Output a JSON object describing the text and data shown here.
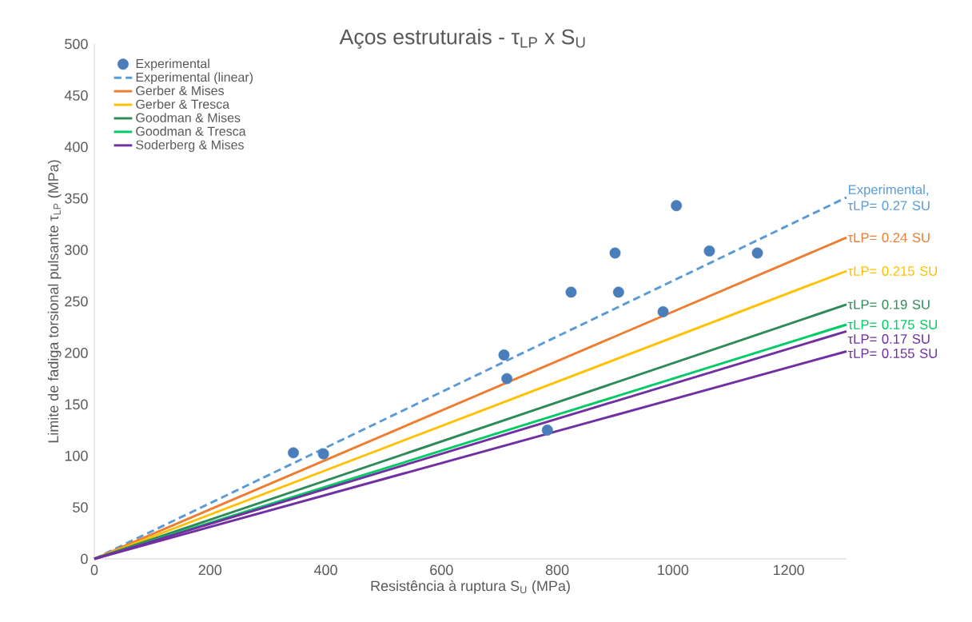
{
  "chart_data": {
    "type": "line",
    "title": "Aços estruturais - τ$_{LP}$ x S$_{U}$",
    "xlabel": "Resistência à ruptura S$_{U}$ (MPa)",
    "ylabel": "Limite de fadiga torsional pulsante τ$_{LP}$ (MPa)",
    "xlim": [
      0,
      1300
    ],
    "ylim": [
      0,
      500
    ],
    "xticks": [
      0,
      200,
      400,
      600,
      800,
      1000,
      1200
    ],
    "yticks": [
      0,
      50,
      100,
      150,
      200,
      250,
      300,
      350,
      400,
      450,
      500
    ],
    "legend": "top left",
    "series": [
      {
        "name": "Experimental",
        "type": "scatter",
        "marker": "circle",
        "color": "#4a7ebb",
        "x": [
          344,
          396,
          708,
          713,
          783,
          824,
          900,
          906,
          983,
          1006,
          1063,
          1146
        ],
        "values": [
          103,
          102,
          198,
          175,
          125,
          259,
          297,
          259,
          240,
          343,
          299,
          297
        ]
      },
      {
        "name": "Experimental (linear)",
        "line_style": "dashed",
        "color": "#5b9bd5",
        "x": [
          0,
          1300
        ],
        "values": [
          0,
          351
        ]
      },
      {
        "name": "Gerber & Mises",
        "color": "#ed7d31",
        "x": [
          0,
          1300
        ],
        "values": [
          0,
          312
        ]
      },
      {
        "name": "Gerber & Tresca",
        "color": "#ffc000",
        "x": [
          0,
          1300
        ],
        "values": [
          0,
          279.5
        ]
      },
      {
        "name": "Goodman & Mises",
        "color": "#2e8b57",
        "x": [
          0,
          1300
        ],
        "values": [
          0,
          247
        ]
      },
      {
        "name": "Goodman & Tresca",
        "color": "#00cc66",
        "x": [
          0,
          1300
        ],
        "values": [
          0,
          227.5
        ]
      },
      {
        "name": "Soderberg & Mises",
        "color": "#7030a0",
        "x": [
          0,
          1300
        ],
        "values": [
          0,
          221
        ]
      },
      {
        "color": "#7030a0",
        "x": [
          0,
          1300
        ],
        "values": [
          0,
          201.5
        ]
      }
    ],
    "annotations": [
      "Experimental, τLP= 0.27 SU",
      "τLP= 0.24 SU",
      "τLP= 0.215 SU",
      "τLP= 0.19 SU",
      "τLP= 0.175 SU",
      "τLP= 0.17 SU",
      "τLP= 0.155 SU"
    ]
  }
}
